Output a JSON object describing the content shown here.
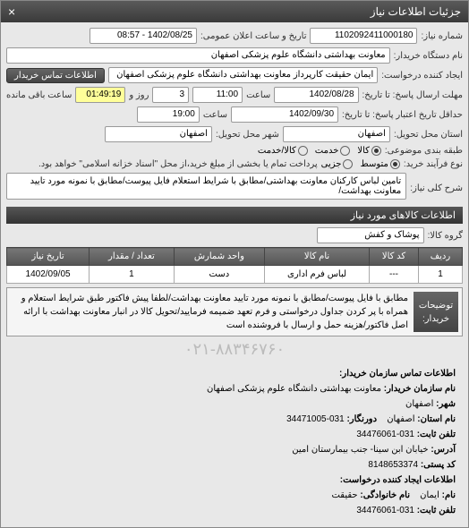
{
  "window": {
    "title": "جزئیات اطلاعات نیاز"
  },
  "header": {
    "number_label": "شماره نیاز:",
    "number": "1102092411000180",
    "datetime_label": "تاریخ و ساعت اعلان عمومی:",
    "datetime": "1402/08/25 - 08:57",
    "buyer_label": "نام دستگاه خریدار:",
    "buyer": "معاونت بهداشتی دانشگاه علوم پزشکی اصفهان",
    "creator_label": "ایجاد کننده درخواست:",
    "creator": "ایمان حقیقت کارپرداز معاونت بهداشتی دانشگاه علوم پزشکی اصفهان",
    "contact_btn": "اطلاعات تماس خریدار"
  },
  "deadlines": {
    "reply_label": "مهلت ارسال پاسخ: تا تاریخ:",
    "reply_date": "1402/08/28",
    "reply_time_label": "ساعت",
    "reply_time": "11:00",
    "remain_days": "3",
    "remain_days_label": "روز و",
    "remain_time": "01:49:19",
    "remain_suffix": "ساعت باقی مانده",
    "valid_label": "حداقل تاریخ اعتبار پاسخ: تا تاریخ:",
    "valid_date": "1402/09/30",
    "valid_time_label": "ساعت",
    "valid_time": "19:00"
  },
  "delivery": {
    "province_label": "استان محل تحویل:",
    "province": "اصفهان",
    "city_label": "شهر محل تحویل:",
    "city": "اصفهان"
  },
  "budget": {
    "label": "طبقه بندی موضوعی:",
    "opts": [
      "کالا",
      "خدمت",
      "کالا/خدمت"
    ],
    "selected": 0
  },
  "purchase": {
    "label": "نوع فرآیند خرید:",
    "opts": [
      "متوسط",
      "جزیی"
    ],
    "selected": 0,
    "note": "پرداخت تمام یا بخشی از مبلغ خرید،از محل \"اسناد خزانه اسلامی\" خواهد بود."
  },
  "need": {
    "title_label": "شرح کلی نیاز:",
    "title": "تامین لباس کارکنان معاونت بهداشتی/مطابق با شرایط استعلام فایل پیوست/مطابق با نمونه مورد تایید معاونت بهداشت/",
    "section": "اطلاعات کالاهای مورد نیاز",
    "group_label": "گروه کالا:",
    "group": "پوشاک و کفش"
  },
  "table": {
    "cols": [
      "ردیف",
      "کد کالا",
      "نام کالا",
      "واحد شمارش",
      "تعداد / مقدار",
      "تاریخ نیاز"
    ],
    "rows": [
      [
        "1",
        "---",
        "لباس فرم اداری",
        "دست",
        "1",
        "1402/09/05"
      ]
    ]
  },
  "desc": {
    "label": "توضیحات خریدار:",
    "text": "مطابق با فایل پیوست/مطابق با نمونه مورد تایید معاونت بهداشت/لطفا پیش فاکتور طبق شرایط استعلام و همراه با پر کردن جداول درخواستی و فرم تعهد ضمیمه فرمایید/تحویل کالا در انبار معاونت بهداشت با ارائه اصل فاکتور/هزینه حمل و ارسال با فروشنده است"
  },
  "watermark": "۰۲۱-۸۸۳۴۶۷۶۰",
  "contact": {
    "header": "اطلاعات تماس سازمان خریدار:",
    "org_label": "نام سازمان خریدار:",
    "org": "معاونت بهداشتی دانشگاه علوم پزشکی اصفهان",
    "city_label": "شهر:",
    "city": "اصفهان",
    "province_label": "نام استان:",
    "province": "اصفهان",
    "fax_label": "دورنگار:",
    "fax": "031-34471005",
    "tel_label": "تلفن ثابت:",
    "tel": "031-34476061",
    "addr_label": "آدرس:",
    "addr": "خیابان ابن سینا- جنب بیمارستان امین",
    "post_label": "کد پستی:",
    "post": "8148653374",
    "creator_header": "اطلاعات ایجاد کننده درخواست:",
    "name_label": "نام:",
    "name": "ایمان",
    "lname_label": "نام خانوادگی:",
    "lname": "حقیقت",
    "ctel_label": "تلفن ثابت:",
    "ctel": "031-34476061"
  }
}
